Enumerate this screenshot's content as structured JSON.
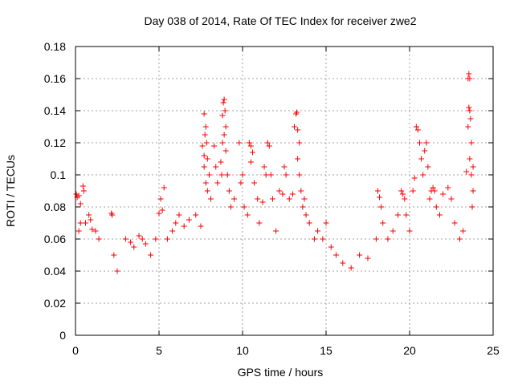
{
  "chart_data": {
    "type": "scatter",
    "title": "Day 038 of 2014, Rate Of TEC Index for receiver zwe2",
    "xlabel": "GPS time / hours",
    "ylabel": "ROTI / TECUs",
    "xlim": [
      0,
      25
    ],
    "ylim": [
      0,
      0.18
    ],
    "x_ticks": [
      0,
      5,
      10,
      15,
      20,
      25
    ],
    "x_tick_labels": [
      "0",
      "5",
      "10",
      "15",
      "20",
      "25"
    ],
    "y_ticks": [
      0,
      0.02,
      0.04,
      0.06,
      0.08,
      0.1,
      0.12,
      0.14,
      0.16,
      0.18
    ],
    "y_tick_labels": [
      "0",
      "0.02",
      "0.04",
      "0.06",
      "0.08",
      "0.1",
      "0.12",
      "0.14",
      "0.16",
      "0.18"
    ],
    "grid": true,
    "marker": "+",
    "color": "#ff0000",
    "series": [
      {
        "name": "ROTI",
        "points": [
          [
            0.05,
            0.088
          ],
          [
            0.1,
            0.086
          ],
          [
            0.2,
            0.087
          ],
          [
            0.3,
            0.082
          ],
          [
            0.45,
            0.093
          ],
          [
            0.5,
            0.09
          ],
          [
            0.3,
            0.07
          ],
          [
            0.2,
            0.065
          ],
          [
            0.6,
            0.07
          ],
          [
            0.8,
            0.075
          ],
          [
            0.9,
            0.072
          ],
          [
            1.0,
            0.066
          ],
          [
            1.2,
            0.065
          ],
          [
            1.4,
            0.06
          ],
          [
            2.15,
            0.076
          ],
          [
            2.2,
            0.075
          ],
          [
            2.3,
            0.05
          ],
          [
            2.5,
            0.04
          ],
          [
            3.0,
            0.06
          ],
          [
            3.3,
            0.058
          ],
          [
            3.5,
            0.055
          ],
          [
            3.8,
            0.062
          ],
          [
            4.0,
            0.06
          ],
          [
            4.2,
            0.057
          ],
          [
            4.5,
            0.05
          ],
          [
            4.8,
            0.06
          ],
          [
            5.0,
            0.076
          ],
          [
            5.1,
            0.085
          ],
          [
            5.3,
            0.092
          ],
          [
            5.2,
            0.078
          ],
          [
            5.5,
            0.06
          ],
          [
            5.8,
            0.065
          ],
          [
            6.0,
            0.07
          ],
          [
            6.2,
            0.075
          ],
          [
            6.5,
            0.068
          ],
          [
            6.8,
            0.072
          ],
          [
            7.2,
            0.075
          ],
          [
            7.5,
            0.068
          ],
          [
            7.7,
            0.138
          ],
          [
            7.75,
            0.125
          ],
          [
            7.8,
            0.13
          ],
          [
            7.85,
            0.12
          ],
          [
            7.9,
            0.11
          ],
          [
            7.7,
            0.105
          ],
          [
            7.8,
            0.095
          ],
          [
            7.9,
            0.09
          ],
          [
            8.0,
            0.1
          ],
          [
            8.1,
            0.085
          ],
          [
            7.6,
            0.118
          ],
          [
            7.7,
            0.112
          ],
          [
            8.3,
            0.118
          ],
          [
            8.4,
            0.105
          ],
          [
            8.5,
            0.095
          ],
          [
            8.7,
            0.108
          ],
          [
            8.75,
            0.1
          ],
          [
            8.8,
            0.137
          ],
          [
            8.85,
            0.145
          ],
          [
            8.9,
            0.147
          ],
          [
            8.95,
            0.14
          ],
          [
            9.0,
            0.13
          ],
          [
            8.9,
            0.125
          ],
          [
            9.0,
            0.115
          ],
          [
            8.8,
            0.12
          ],
          [
            9.1,
            0.1
          ],
          [
            9.2,
            0.09
          ],
          [
            9.3,
            0.08
          ],
          [
            9.5,
            0.085
          ],
          [
            9.8,
            0.12
          ],
          [
            9.9,
            0.095
          ],
          [
            10.0,
            0.1
          ],
          [
            10.1,
            0.08
          ],
          [
            10.3,
            0.075
          ],
          [
            10.4,
            0.12
          ],
          [
            10.5,
            0.118
          ],
          [
            10.6,
            0.114
          ],
          [
            10.5,
            0.108
          ],
          [
            10.7,
            0.095
          ],
          [
            10.9,
            0.085
          ],
          [
            11.0,
            0.07
          ],
          [
            11.3,
            0.105
          ],
          [
            11.4,
            0.1
          ],
          [
            11.2,
            0.083
          ],
          [
            11.5,
            0.12
          ],
          [
            11.6,
            0.118
          ],
          [
            11.7,
            0.1
          ],
          [
            11.8,
            0.085
          ],
          [
            12.0,
            0.065
          ],
          [
            12.2,
            0.09
          ],
          [
            12.4,
            0.088
          ],
          [
            12.5,
            0.105
          ],
          [
            12.6,
            0.1
          ],
          [
            12.8,
            0.085
          ],
          [
            13.0,
            0.088
          ],
          [
            13.1,
            0.13
          ],
          [
            13.2,
            0.138
          ],
          [
            13.25,
            0.139
          ],
          [
            13.3,
            0.128
          ],
          [
            13.4,
            0.12
          ],
          [
            13.3,
            0.11
          ],
          [
            13.4,
            0.1
          ],
          [
            13.5,
            0.09
          ],
          [
            13.6,
            0.08
          ],
          [
            13.7,
            0.085
          ],
          [
            13.8,
            0.075
          ],
          [
            14.0,
            0.07
          ],
          [
            14.3,
            0.06
          ],
          [
            14.5,
            0.065
          ],
          [
            14.8,
            0.06
          ],
          [
            15.0,
            0.07
          ],
          [
            15.3,
            0.055
          ],
          [
            15.6,
            0.05
          ],
          [
            16.0,
            0.045
          ],
          [
            16.5,
            0.042
          ],
          [
            17.0,
            0.05
          ],
          [
            17.5,
            0.048
          ],
          [
            18.0,
            0.06
          ],
          [
            18.1,
            0.09
          ],
          [
            18.2,
            0.086
          ],
          [
            18.3,
            0.08
          ],
          [
            18.4,
            0.07
          ],
          [
            18.7,
            0.06
          ],
          [
            19.0,
            0.065
          ],
          [
            19.3,
            0.075
          ],
          [
            19.5,
            0.09
          ],
          [
            19.6,
            0.088
          ],
          [
            19.7,
            0.085
          ],
          [
            19.8,
            0.075
          ],
          [
            20.0,
            0.065
          ],
          [
            20.2,
            0.09
          ],
          [
            20.3,
            0.098
          ],
          [
            20.4,
            0.13
          ],
          [
            20.5,
            0.128
          ],
          [
            20.6,
            0.12
          ],
          [
            20.7,
            0.11
          ],
          [
            20.8,
            0.1
          ],
          [
            20.9,
            0.115
          ],
          [
            21.0,
            0.12
          ],
          [
            21.1,
            0.105
          ],
          [
            21.2,
            0.085
          ],
          [
            21.3,
            0.09
          ],
          [
            21.4,
            0.092
          ],
          [
            21.5,
            0.09
          ],
          [
            21.6,
            0.08
          ],
          [
            21.8,
            0.075
          ],
          [
            22.0,
            0.088
          ],
          [
            22.3,
            0.092
          ],
          [
            22.5,
            0.085
          ],
          [
            22.7,
            0.07
          ],
          [
            23.0,
            0.06
          ],
          [
            23.2,
            0.065
          ],
          [
            23.4,
            0.102
          ],
          [
            23.5,
            0.13
          ],
          [
            23.55,
            0.142
          ],
          [
            23.6,
            0.14
          ],
          [
            23.5,
            0.16
          ],
          [
            23.55,
            0.163
          ],
          [
            23.6,
            0.16
          ],
          [
            23.65,
            0.135
          ],
          [
            23.7,
            0.12
          ],
          [
            23.6,
            0.11
          ],
          [
            23.7,
            0.1
          ],
          [
            23.8,
            0.09
          ],
          [
            23.75,
            0.08
          ],
          [
            23.8,
            0.105
          ]
        ]
      }
    ]
  }
}
